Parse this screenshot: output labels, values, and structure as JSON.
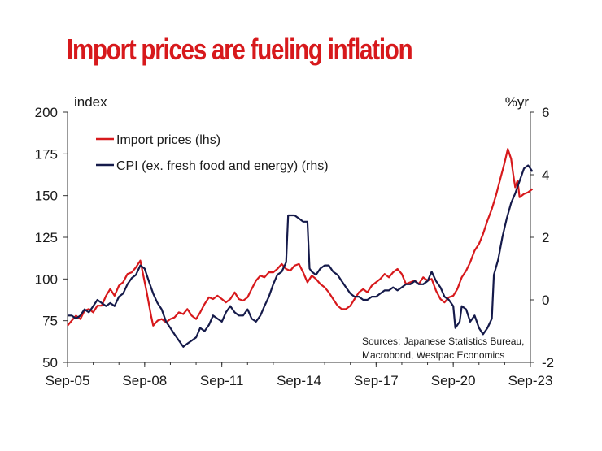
{
  "chart_data": {
    "type": "line",
    "title": "Import prices are fueling inflation",
    "left_unit": "index",
    "right_unit": "%yr",
    "x_ticks": [
      "Sep-05",
      "Sep-08",
      "Sep-11",
      "Sep-14",
      "Sep-17",
      "Sep-20",
      "Sep-23"
    ],
    "x_range": [
      2005.67,
      2023.67
    ],
    "y_left_ticks": [
      "50",
      "75",
      "100",
      "125",
      "150",
      "175",
      "200"
    ],
    "y_left_range": [
      50,
      200
    ],
    "y_right_ticks": [
      "-2",
      "0",
      "2",
      "4",
      "6"
    ],
    "y_right_range": [
      -2,
      6
    ],
    "grid": false,
    "legend_position": "top-left",
    "source": [
      "Sources: Japanese Statistics Bureau,",
      "Macrobond, Westpac Economics"
    ],
    "series": [
      {
        "name": "Import prices (lhs)",
        "axis": "left",
        "color": "#d7191c",
        "points": [
          [
            2005.67,
            72
          ],
          [
            2005.83,
            75
          ],
          [
            2006.0,
            78
          ],
          [
            2006.17,
            76
          ],
          [
            2006.33,
            81
          ],
          [
            2006.5,
            82
          ],
          [
            2006.67,
            80
          ],
          [
            2006.83,
            84
          ],
          [
            2007.0,
            84
          ],
          [
            2007.17,
            90
          ],
          [
            2007.33,
            94
          ],
          [
            2007.5,
            90
          ],
          [
            2007.67,
            96
          ],
          [
            2007.83,
            98
          ],
          [
            2008.0,
            103
          ],
          [
            2008.17,
            104
          ],
          [
            2008.33,
            107
          ],
          [
            2008.5,
            111
          ],
          [
            2008.58,
            105
          ],
          [
            2008.75,
            92
          ],
          [
            2008.92,
            78
          ],
          [
            2009.0,
            72
          ],
          [
            2009.17,
            75
          ],
          [
            2009.33,
            76
          ],
          [
            2009.5,
            74
          ],
          [
            2009.67,
            76
          ],
          [
            2009.83,
            77
          ],
          [
            2010.0,
            80
          ],
          [
            2010.17,
            79
          ],
          [
            2010.33,
            82
          ],
          [
            2010.5,
            78
          ],
          [
            2010.67,
            76
          ],
          [
            2010.83,
            80
          ],
          [
            2011.0,
            85
          ],
          [
            2011.17,
            89
          ],
          [
            2011.33,
            88
          ],
          [
            2011.5,
            90
          ],
          [
            2011.67,
            88
          ],
          [
            2011.83,
            86
          ],
          [
            2012.0,
            88
          ],
          [
            2012.17,
            92
          ],
          [
            2012.33,
            88
          ],
          [
            2012.5,
            87
          ],
          [
            2012.67,
            89
          ],
          [
            2012.83,
            94
          ],
          [
            2013.0,
            99
          ],
          [
            2013.17,
            102
          ],
          [
            2013.33,
            101
          ],
          [
            2013.5,
            104
          ],
          [
            2013.67,
            104
          ],
          [
            2013.83,
            106
          ],
          [
            2014.0,
            109
          ],
          [
            2014.17,
            106
          ],
          [
            2014.33,
            105
          ],
          [
            2014.5,
            108
          ],
          [
            2014.67,
            109
          ],
          [
            2014.83,
            104
          ],
          [
            2015.0,
            98
          ],
          [
            2015.17,
            102
          ],
          [
            2015.33,
            100
          ],
          [
            2015.5,
            97
          ],
          [
            2015.67,
            95
          ],
          [
            2015.83,
            92
          ],
          [
            2016.0,
            88
          ],
          [
            2016.17,
            84
          ],
          [
            2016.33,
            82
          ],
          [
            2016.5,
            82
          ],
          [
            2016.67,
            84
          ],
          [
            2016.83,
            88
          ],
          [
            2017.0,
            92
          ],
          [
            2017.17,
            94
          ],
          [
            2017.33,
            92
          ],
          [
            2017.5,
            96
          ],
          [
            2017.67,
            98
          ],
          [
            2017.83,
            100
          ],
          [
            2018.0,
            103
          ],
          [
            2018.17,
            101
          ],
          [
            2018.33,
            104
          ],
          [
            2018.5,
            106
          ],
          [
            2018.67,
            103
          ],
          [
            2018.83,
            97
          ],
          [
            2019.0,
            98
          ],
          [
            2019.17,
            99
          ],
          [
            2019.33,
            97
          ],
          [
            2019.5,
            101
          ],
          [
            2019.67,
            99
          ],
          [
            2019.83,
            100
          ],
          [
            2020.0,
            93
          ],
          [
            2020.17,
            88
          ],
          [
            2020.33,
            86
          ],
          [
            2020.5,
            89
          ],
          [
            2020.67,
            90
          ],
          [
            2020.83,
            94
          ],
          [
            2021.0,
            101
          ],
          [
            2021.17,
            105
          ],
          [
            2021.33,
            110
          ],
          [
            2021.5,
            117
          ],
          [
            2021.67,
            121
          ],
          [
            2021.83,
            127
          ],
          [
            2022.0,
            135
          ],
          [
            2022.17,
            142
          ],
          [
            2022.33,
            150
          ],
          [
            2022.5,
            160
          ],
          [
            2022.67,
            170
          ],
          [
            2022.79,
            178
          ],
          [
            2022.92,
            172
          ],
          [
            2023.0,
            163
          ],
          [
            2023.08,
            155
          ],
          [
            2023.17,
            159
          ],
          [
            2023.25,
            149
          ],
          [
            2023.42,
            151
          ],
          [
            2023.58,
            152
          ],
          [
            2023.75,
            154
          ]
        ]
      },
      {
        "name": "CPI (ex. fresh food and energy) (rhs)",
        "axis": "right",
        "color": "#151a4a",
        "points": [
          [
            2005.67,
            -0.5
          ],
          [
            2005.83,
            -0.5
          ],
          [
            2006.0,
            -0.6
          ],
          [
            2006.17,
            -0.5
          ],
          [
            2006.33,
            -0.3
          ],
          [
            2006.5,
            -0.4
          ],
          [
            2006.67,
            -0.2
          ],
          [
            2006.83,
            0.0
          ],
          [
            2007.0,
            -0.1
          ],
          [
            2007.17,
            -0.2
          ],
          [
            2007.33,
            -0.1
          ],
          [
            2007.5,
            -0.2
          ],
          [
            2007.67,
            0.1
          ],
          [
            2007.83,
            0.2
          ],
          [
            2008.0,
            0.5
          ],
          [
            2008.17,
            0.7
          ],
          [
            2008.33,
            0.8
          ],
          [
            2008.5,
            1.1
          ],
          [
            2008.67,
            1.0
          ],
          [
            2008.83,
            0.6
          ],
          [
            2009.0,
            0.2
          ],
          [
            2009.17,
            -0.1
          ],
          [
            2009.33,
            -0.3
          ],
          [
            2009.5,
            -0.7
          ],
          [
            2009.67,
            -0.9
          ],
          [
            2009.83,
            -1.1
          ],
          [
            2010.0,
            -1.3
          ],
          [
            2010.17,
            -1.5
          ],
          [
            2010.33,
            -1.4
          ],
          [
            2010.5,
            -1.3
          ],
          [
            2010.67,
            -1.2
          ],
          [
            2010.83,
            -0.9
          ],
          [
            2011.0,
            -1.0
          ],
          [
            2011.17,
            -0.8
          ],
          [
            2011.33,
            -0.5
          ],
          [
            2011.5,
            -0.6
          ],
          [
            2011.67,
            -0.7
          ],
          [
            2011.83,
            -0.4
          ],
          [
            2012.0,
            -0.2
          ],
          [
            2012.17,
            -0.4
          ],
          [
            2012.33,
            -0.5
          ],
          [
            2012.5,
            -0.5
          ],
          [
            2012.67,
            -0.3
          ],
          [
            2012.83,
            -0.6
          ],
          [
            2013.0,
            -0.7
          ],
          [
            2013.17,
            -0.5
          ],
          [
            2013.33,
            -0.2
          ],
          [
            2013.5,
            0.1
          ],
          [
            2013.67,
            0.5
          ],
          [
            2013.83,
            0.8
          ],
          [
            2014.0,
            0.9
          ],
          [
            2014.17,
            1.2
          ],
          [
            2014.25,
            2.7
          ],
          [
            2014.33,
            2.7
          ],
          [
            2014.5,
            2.7
          ],
          [
            2014.67,
            2.6
          ],
          [
            2014.83,
            2.5
          ],
          [
            2015.0,
            2.5
          ],
          [
            2015.08,
            1.0
          ],
          [
            2015.17,
            0.9
          ],
          [
            2015.33,
            0.8
          ],
          [
            2015.5,
            1.0
          ],
          [
            2015.67,
            1.1
          ],
          [
            2015.83,
            1.1
          ],
          [
            2016.0,
            0.9
          ],
          [
            2016.17,
            0.8
          ],
          [
            2016.33,
            0.6
          ],
          [
            2016.5,
            0.4
          ],
          [
            2016.67,
            0.2
          ],
          [
            2016.83,
            0.1
          ],
          [
            2017.0,
            0.1
          ],
          [
            2017.17,
            0.0
          ],
          [
            2017.33,
            0.0
          ],
          [
            2017.5,
            0.1
          ],
          [
            2017.67,
            0.1
          ],
          [
            2017.83,
            0.2
          ],
          [
            2018.0,
            0.3
          ],
          [
            2018.17,
            0.3
          ],
          [
            2018.33,
            0.4
          ],
          [
            2018.5,
            0.3
          ],
          [
            2018.67,
            0.4
          ],
          [
            2018.83,
            0.5
          ],
          [
            2019.0,
            0.5
          ],
          [
            2019.17,
            0.6
          ],
          [
            2019.33,
            0.5
          ],
          [
            2019.5,
            0.5
          ],
          [
            2019.67,
            0.6
          ],
          [
            2019.83,
            0.9
          ],
          [
            2020.0,
            0.6
          ],
          [
            2020.17,
            0.4
          ],
          [
            2020.33,
            0.1
          ],
          [
            2020.5,
            0.0
          ],
          [
            2020.67,
            -0.2
          ],
          [
            2020.75,
            -0.9
          ],
          [
            2020.92,
            -0.7
          ],
          [
            2021.0,
            -0.2
          ],
          [
            2021.17,
            -0.3
          ],
          [
            2021.33,
            -0.7
          ],
          [
            2021.5,
            -0.5
          ],
          [
            2021.67,
            -0.9
          ],
          [
            2021.83,
            -1.1
          ],
          [
            2022.0,
            -0.9
          ],
          [
            2022.17,
            -0.6
          ],
          [
            2022.25,
            0.8
          ],
          [
            2022.42,
            1.3
          ],
          [
            2022.58,
            2.0
          ],
          [
            2022.75,
            2.6
          ],
          [
            2022.92,
            3.1
          ],
          [
            2023.08,
            3.4
          ],
          [
            2023.25,
            3.8
          ],
          [
            2023.42,
            4.2
          ],
          [
            2023.58,
            4.3
          ],
          [
            2023.67,
            4.2
          ],
          [
            2023.75,
            4.1
          ]
        ]
      }
    ]
  }
}
